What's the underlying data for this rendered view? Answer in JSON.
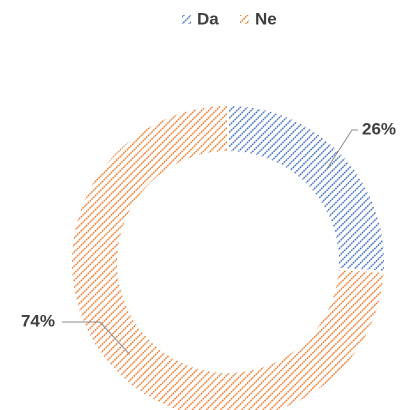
{
  "chart_data": {
    "type": "pie",
    "donut": true,
    "categories": [
      "Da",
      "Ne"
    ],
    "values": [
      26,
      74
    ],
    "value_labels": [
      "26%",
      "74%"
    ],
    "colors": [
      "#4472c4",
      "#ed7d31"
    ],
    "legend": "top"
  }
}
